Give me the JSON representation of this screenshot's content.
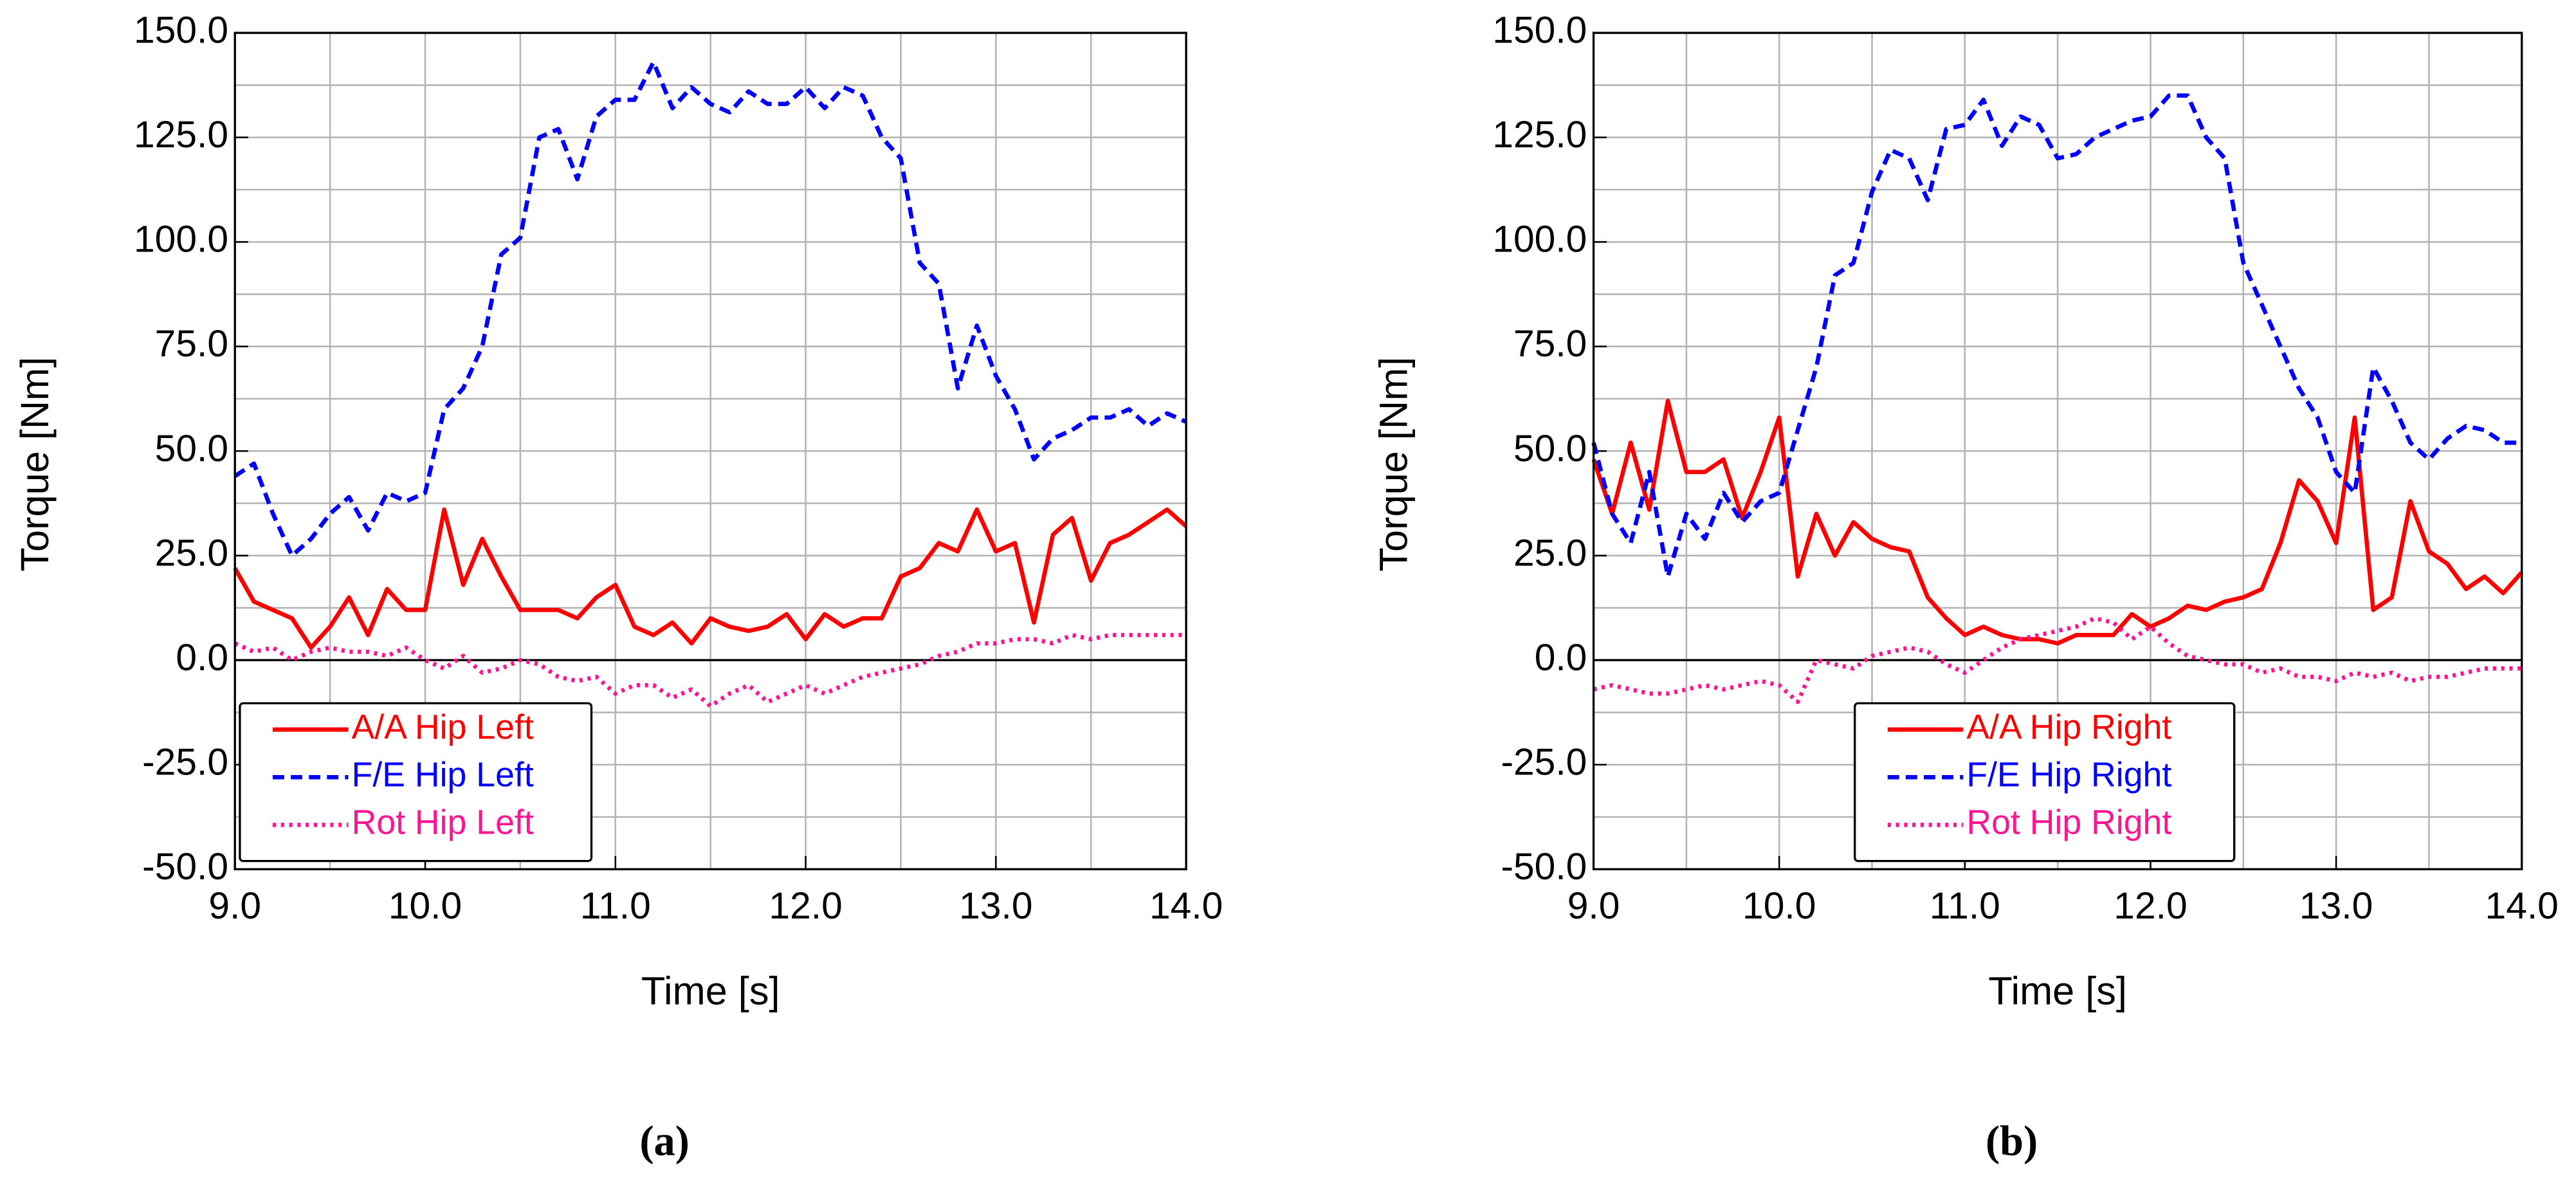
{
  "chart_data": [
    {
      "type": "line",
      "caption": "(a)",
      "xlabel": "Time [s]",
      "ylabel": "Torque [Nm]",
      "xlim": [
        9.0,
        14.0
      ],
      "xticks": [
        {
          "value": 9,
          "label": "9.0"
        },
        {
          "value": 10,
          "label": "10.0"
        },
        {
          "value": 11,
          "label": "11.0"
        },
        {
          "value": 12,
          "label": "12.0"
        },
        {
          "value": 13,
          "label": "13.0"
        },
        {
          "value": 14,
          "label": "14.0"
        }
      ],
      "ylim": [
        -50,
        150
      ],
      "yticks": [
        {
          "value": -50,
          "label": "-50.0"
        },
        {
          "value": -25,
          "label": "-25.0"
        },
        {
          "value": 0,
          "label": "0.0"
        },
        {
          "value": 25,
          "label": "25.0"
        },
        {
          "value": 50,
          "label": "50.0"
        },
        {
          "value": 75,
          "label": "75.0"
        },
        {
          "value": 100,
          "label": "100.0"
        },
        {
          "value": 125,
          "label": "125.0"
        },
        {
          "value": 150,
          "label": "150.0"
        }
      ],
      "grid": true,
      "legend": "lower left",
      "x": [
        9.0,
        9.1,
        9.2,
        9.3,
        9.4,
        9.5,
        9.6,
        9.7,
        9.8,
        9.9,
        10.0,
        10.1,
        10.2,
        10.3,
        10.4,
        10.5,
        10.6,
        10.7,
        10.8,
        10.9,
        11.0,
        11.1,
        11.2,
        11.3,
        11.4,
        11.5,
        11.6,
        11.7,
        11.8,
        11.9,
        12.0,
        12.1,
        12.2,
        12.3,
        12.4,
        12.5,
        12.6,
        12.7,
        12.8,
        12.9,
        13.0,
        13.1,
        13.2,
        13.3,
        13.4,
        13.5,
        13.6,
        13.7,
        13.8,
        13.9,
        14.0
      ],
      "series": [
        {
          "name": "A/A Hip Left",
          "color": "#ff0000",
          "linestyle": "solid",
          "values": [
            22,
            14,
            12,
            10,
            3,
            8,
            15,
            6,
            17,
            12,
            12,
            36,
            18,
            29,
            20,
            12,
            12,
            12,
            10,
            15,
            18,
            8,
            6,
            9,
            4,
            10,
            8,
            7,
            8,
            11,
            5,
            11,
            8,
            10,
            10,
            20,
            22,
            28,
            26,
            36,
            26,
            28,
            9,
            30,
            34,
            19,
            28,
            30,
            33,
            36,
            32
          ]
        },
        {
          "name": "F/E Hip Left",
          "color": "#0000ff",
          "linestyle": "dashed",
          "values": [
            44,
            47,
            35,
            25,
            29,
            35,
            39,
            31,
            40,
            38,
            40,
            60,
            65,
            75,
            97,
            101,
            125,
            127,
            115,
            130,
            134,
            134,
            143,
            132,
            137,
            133,
            131,
            136,
            133,
            133,
            137,
            132,
            137,
            135,
            125,
            120,
            95,
            90,
            65,
            80,
            68,
            60,
            48,
            53,
            55,
            58,
            58,
            60,
            56,
            59,
            57
          ]
        },
        {
          "name": "Rot Hip Left",
          "color": "#ff1493",
          "linestyle": "dotted",
          "values": [
            4,
            2,
            3,
            0,
            2,
            3,
            2,
            2,
            1,
            3,
            0,
            -2,
            1,
            -3,
            -2,
            0,
            -1,
            -4,
            -5,
            -4,
            -8,
            -6,
            -6,
            -9,
            -7,
            -11,
            -8,
            -6,
            -10,
            -8,
            -6,
            -8,
            -6,
            -4,
            -3,
            -2,
            -1,
            1,
            2,
            4,
            4,
            5,
            5,
            4,
            6,
            5,
            6,
            6,
            6,
            6,
            6
          ]
        }
      ]
    },
    {
      "type": "line",
      "caption": "(b)",
      "xlabel": "Time [s]",
      "ylabel": "Torque [Nm]",
      "xlim": [
        9.0,
        14.0
      ],
      "xticks": [
        {
          "value": 9,
          "label": "9.0"
        },
        {
          "value": 10,
          "label": "10.0"
        },
        {
          "value": 11,
          "label": "11.0"
        },
        {
          "value": 12,
          "label": "12.0"
        },
        {
          "value": 13,
          "label": "13.0"
        },
        {
          "value": 14,
          "label": "14.0"
        }
      ],
      "ylim": [
        -50,
        150
      ],
      "yticks": [
        {
          "value": -50,
          "label": "-50.0"
        },
        {
          "value": -25,
          "label": "-25.0"
        },
        {
          "value": 0,
          "label": "0.0"
        },
        {
          "value": 25,
          "label": "25.0"
        },
        {
          "value": 50,
          "label": "50.0"
        },
        {
          "value": 75,
          "label": "75.0"
        },
        {
          "value": 100,
          "label": "100.0"
        },
        {
          "value": 125,
          "label": "125.0"
        },
        {
          "value": 150,
          "label": "150.0"
        }
      ],
      "grid": true,
      "legend": "lower center",
      "x": [
        9.0,
        9.1,
        9.2,
        9.3,
        9.4,
        9.5,
        9.6,
        9.7,
        9.8,
        9.9,
        10.0,
        10.1,
        10.2,
        10.3,
        10.4,
        10.5,
        10.6,
        10.7,
        10.8,
        10.9,
        11.0,
        11.1,
        11.2,
        11.3,
        11.4,
        11.5,
        11.6,
        11.7,
        11.8,
        11.9,
        12.0,
        12.1,
        12.2,
        12.3,
        12.4,
        12.5,
        12.6,
        12.7,
        12.8,
        12.9,
        13.0,
        13.1,
        13.2,
        13.3,
        13.4,
        13.5,
        13.6,
        13.7,
        13.8,
        13.9,
        14.0
      ],
      "series": [
        {
          "name": "A/A Hip Right",
          "color": "#ff0000",
          "linestyle": "solid",
          "values": [
            48,
            35,
            52,
            36,
            62,
            45,
            45,
            48,
            34,
            45,
            58,
            20,
            35,
            25,
            33,
            29,
            27,
            26,
            15,
            10,
            6,
            8,
            6,
            5,
            5,
            4,
            6,
            6,
            6,
            11,
            8,
            10,
            13,
            12,
            14,
            15,
            17,
            28,
            43,
            38,
            28,
            58,
            12,
            15,
            38,
            26,
            23,
            17,
            20,
            16,
            21
          ]
        },
        {
          "name": "F/E Hip Right",
          "color": "#0000ff",
          "linestyle": "dashed",
          "values": [
            52,
            35,
            28,
            45,
            20,
            35,
            29,
            40,
            33,
            38,
            40,
            55,
            70,
            92,
            95,
            112,
            122,
            120,
            110,
            127,
            128,
            134,
            123,
            130,
            128,
            120,
            121,
            125,
            127,
            129,
            130,
            135,
            135,
            125,
            120,
            95,
            85,
            75,
            65,
            58,
            45,
            40,
            70,
            62,
            52,
            48,
            53,
            56,
            55,
            52,
            52
          ]
        },
        {
          "name": "Rot Hip Right",
          "color": "#ff1493",
          "linestyle": "dotted",
          "values": [
            -7,
            -6,
            -7,
            -8,
            -8,
            -7,
            -6,
            -7,
            -6,
            -5,
            -6,
            -10,
            0,
            -1,
            -2,
            1,
            2,
            3,
            2,
            -1,
            -3,
            0,
            3,
            5,
            6,
            7,
            8,
            10,
            9,
            5,
            8,
            4,
            1,
            0,
            -1,
            -1,
            -3,
            -2,
            -4,
            -4,
            -5,
            -3,
            -4,
            -3,
            -5,
            -4,
            -4,
            -3,
            -2,
            -2,
            -2
          ]
        }
      ]
    }
  ]
}
